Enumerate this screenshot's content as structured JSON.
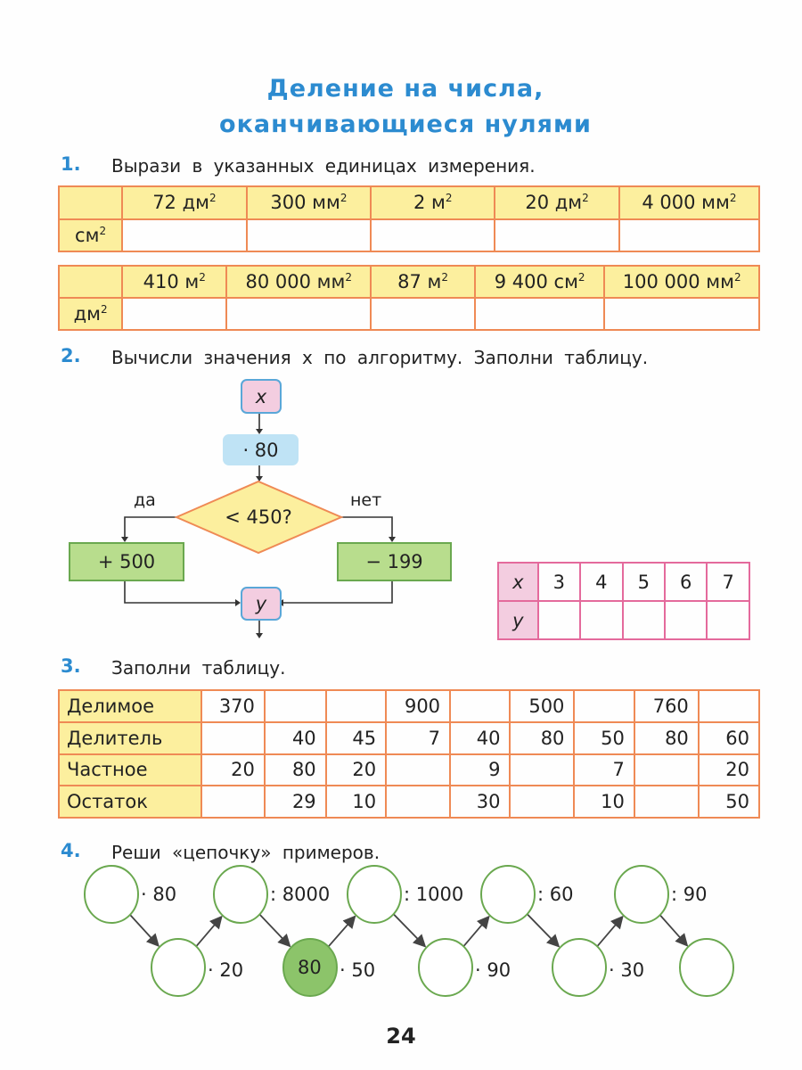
{
  "title": [
    "Деление на числа,",
    "оканчивающиеся нулями"
  ],
  "task1": {
    "number": "1.",
    "text": "Вырази в указанных единицах измерения.",
    "table_a": {
      "row_label": "см",
      "headers": [
        "72 дм",
        "300 мм",
        "2 м",
        "20 дм",
        "4 000 мм"
      ]
    },
    "table_b": {
      "row_label": "дм",
      "headers": [
        "410 м",
        "80 000 мм",
        "87 м",
        "9 400 см",
        "100 000 мм"
      ]
    },
    "exponent": "2"
  },
  "task2": {
    "number": "2.",
    "text": "Вычисли значения x по алгоритму. Заполни таблицу.",
    "flow": {
      "start": "x",
      "multiply": "· 80",
      "condition": "< 450?",
      "yes": "да",
      "no": "нет",
      "yes_op": "+ 500",
      "no_op": "− 199",
      "end": "y"
    },
    "table": {
      "x_label": "x",
      "y_label": "y",
      "x_values": [
        "3",
        "4",
        "5",
        "6",
        "7"
      ]
    }
  },
  "task3": {
    "number": "3.",
    "text": "Заполни таблицу.",
    "rows": [
      {
        "label": "Делимое",
        "cells": [
          "370",
          "",
          "",
          "900",
          "",
          "500",
          "",
          "760",
          ""
        ]
      },
      {
        "label": "Делитель",
        "cells": [
          "",
          "40",
          "45",
          "7",
          "40",
          "80",
          "50",
          "80",
          "60"
        ]
      },
      {
        "label": "Частное",
        "cells": [
          "20",
          "80",
          "20",
          "",
          "9",
          "",
          "7",
          "",
          "20"
        ]
      },
      {
        "label": "Остаток",
        "cells": [
          "",
          "29",
          "10",
          "",
          "30",
          "",
          "10",
          "",
          "50"
        ]
      }
    ]
  },
  "task4": {
    "number": "4.",
    "text": "Реши «цепочку» примеров.",
    "ops_top": [
      "· 80",
      ": 8000",
      ": 1000",
      ": 60",
      ": 90"
    ],
    "ops_bottom": [
      "· 20",
      "· 50",
      "· 90",
      "· 30"
    ],
    "given": "80"
  },
  "page_number": "24"
}
